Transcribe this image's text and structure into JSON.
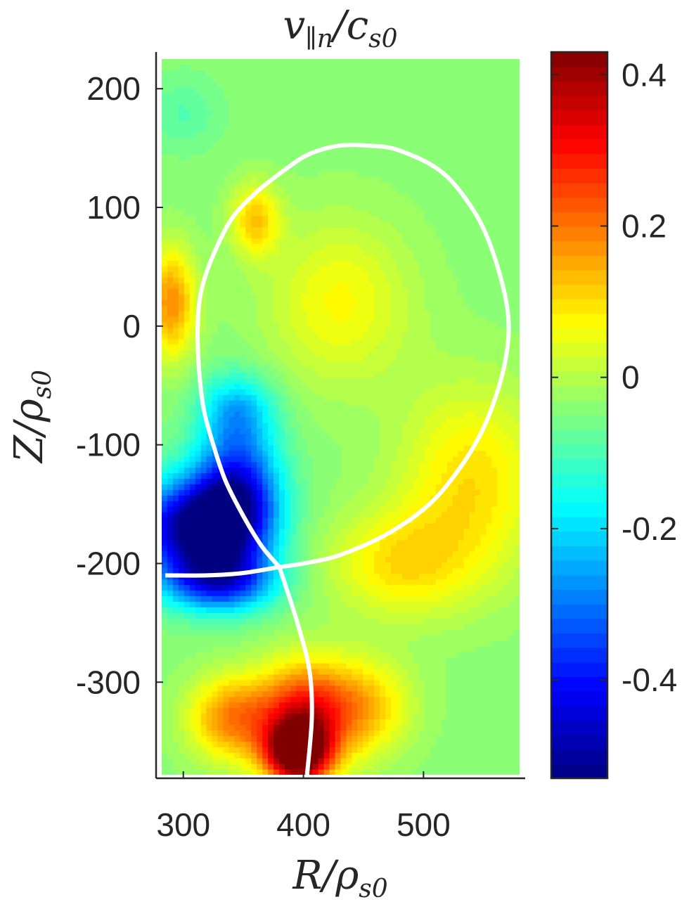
{
  "chart_data": {
    "type": "heatmap",
    "title": "v∥n/cs0",
    "title_parts": {
      "main": "v",
      "sub": "∥n",
      "slash": "/",
      "den": "c",
      "den_sub": "s0"
    },
    "xlabel": "R/ρs0",
    "xlabel_parts": {
      "main": "R",
      "slash": "/",
      "den": "ρ",
      "den_sub": "s0"
    },
    "ylabel": "Z/ρs0",
    "ylabel_parts": {
      "main": "Z",
      "slash": "/",
      "den": "ρ",
      "den_sub": "s0"
    },
    "xlim": [
      282,
      580
    ],
    "ylim": [
      -378,
      225
    ],
    "xticks": [
      300,
      400,
      500
    ],
    "yticks": [
      200,
      100,
      0,
      -100,
      -200,
      -300
    ],
    "colorbar": {
      "colormap": "jet",
      "clim": [
        -0.53,
        0.43
      ],
      "ticks": [
        0.4,
        0.2,
        0,
        -0.2,
        -0.4
      ],
      "levels": 50
    },
    "field_blobs": [
      {
        "r": 310,
        "z": -170,
        "value": -0.52,
        "rr": 50,
        "rz": 40
      },
      {
        "r": 345,
        "z": -140,
        "value": -0.4,
        "rr": 35,
        "rz": 55
      },
      {
        "r": 330,
        "z": -215,
        "value": -0.35,
        "rr": 45,
        "rz": 25
      },
      {
        "r": 345,
        "z": -70,
        "value": -0.2,
        "rr": 30,
        "rz": 30
      },
      {
        "r": 395,
        "z": -360,
        "value": 0.43,
        "rr": 25,
        "rz": 25
      },
      {
        "r": 400,
        "z": -330,
        "value": 0.3,
        "rr": 38,
        "rz": 45
      },
      {
        "r": 340,
        "z": -330,
        "value": 0.18,
        "rr": 35,
        "rz": 35
      },
      {
        "r": 450,
        "z": -320,
        "value": 0.12,
        "rr": 40,
        "rz": 40
      },
      {
        "r": 290,
        "z": 20,
        "value": 0.18,
        "rr": 20,
        "rz": 45
      },
      {
        "r": 360,
        "z": 90,
        "value": 0.12,
        "rr": 20,
        "rz": 30
      },
      {
        "r": 540,
        "z": -130,
        "value": 0.1,
        "rr": 60,
        "rz": 80
      },
      {
        "r": 480,
        "z": -200,
        "value": 0.09,
        "rr": 60,
        "rz": 45
      },
      {
        "r": 430,
        "z": 20,
        "value": 0.07,
        "rr": 60,
        "rz": 70
      },
      {
        "r": 300,
        "z": 180,
        "value": -0.09,
        "rr": 30,
        "rz": 30
      }
    ],
    "field_baseline": -0.04,
    "separatrix": {
      "color": "#ffffff",
      "x_point": [
        380,
        -203
      ],
      "core_loop": [
        [
          380,
          -203
        ],
        [
          400,
          -200
        ],
        [
          430,
          -193
        ],
        [
          470,
          -175
        ],
        [
          505,
          -150
        ],
        [
          530,
          -120
        ],
        [
          548,
          -90
        ],
        [
          560,
          -60
        ],
        [
          568,
          -30
        ],
        [
          571,
          0
        ],
        [
          567,
          30
        ],
        [
          555,
          70
        ],
        [
          540,
          100
        ],
        [
          515,
          130
        ],
        [
          480,
          148
        ],
        [
          455,
          152
        ],
        [
          430,
          152
        ],
        [
          405,
          145
        ],
        [
          385,
          132
        ],
        [
          360,
          112
        ],
        [
          340,
          90
        ],
        [
          325,
          60
        ],
        [
          315,
          30
        ],
        [
          312,
          0
        ],
        [
          313,
          -35
        ],
        [
          317,
          -70
        ],
        [
          325,
          -100
        ],
        [
          335,
          -130
        ],
        [
          350,
          -160
        ],
        [
          365,
          -185
        ],
        [
          380,
          -203
        ]
      ],
      "legs": [
        [
          [
            380,
            -203
          ],
          [
            395,
            -250
          ],
          [
            405,
            -290
          ],
          [
            407,
            -330
          ],
          [
            403,
            -378
          ]
        ],
        [
          [
            380,
            -203
          ],
          [
            350,
            -208
          ],
          [
            320,
            -210
          ],
          [
            285,
            -210
          ]
        ]
      ]
    }
  }
}
